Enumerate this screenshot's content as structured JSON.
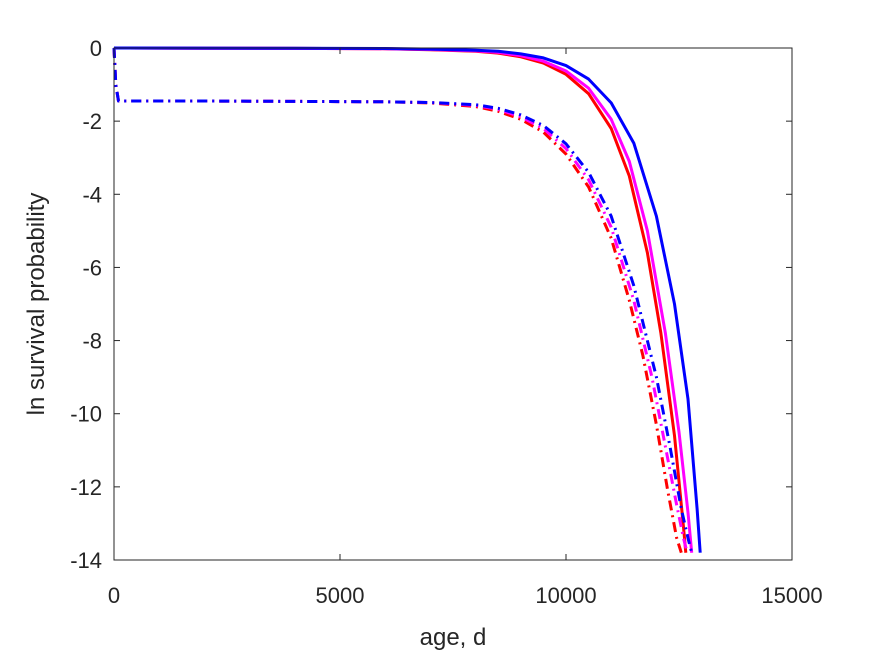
{
  "chart_data": {
    "type": "line",
    "title": "",
    "xlabel": "age, d",
    "ylabel": "ln survival probability",
    "xlim": [
      0,
      15000
    ],
    "ylim": [
      -14,
      0
    ],
    "xticks": [
      0,
      5000,
      10000,
      15000
    ],
    "yticks": [
      0,
      -2,
      -4,
      -6,
      -8,
      -10,
      -12,
      -14
    ],
    "xtick_labels": [
      "0",
      "5000",
      "10000",
      "15000"
    ],
    "ytick_labels": [
      "0",
      "-2",
      "-4",
      "-6",
      "-8",
      "-10",
      "-12",
      "-14"
    ],
    "grid": false,
    "legend": "none",
    "series": [
      {
        "color": "#ff0000",
        "style": "solid",
        "x": [
          0,
          2000,
          4000,
          6000,
          7000,
          8000,
          8500,
          9000,
          9500,
          10000,
          10500,
          11000,
          11400,
          11800,
          12100,
          12400,
          12600,
          12650
        ],
        "y": [
          0,
          -0.005,
          -0.01,
          -0.02,
          -0.05,
          -0.09,
          -0.14,
          -0.24,
          -0.41,
          -0.72,
          -1.25,
          -2.2,
          -3.5,
          -5.6,
          -7.8,
          -10.6,
          -13.1,
          -13.8
        ]
      },
      {
        "color": "#ff00ff",
        "style": "solid",
        "x": [
          0,
          2000,
          4000,
          6000,
          7000,
          8000,
          8500,
          9000,
          9500,
          10000,
          10500,
          11000,
          11400,
          11800,
          12200,
          12500,
          12700,
          12780
        ],
        "y": [
          0,
          -0.005,
          -0.01,
          -0.02,
          -0.04,
          -0.08,
          -0.12,
          -0.21,
          -0.36,
          -0.63,
          -1.1,
          -1.95,
          -3.1,
          -5.0,
          -7.8,
          -10.5,
          -12.7,
          -13.8
        ]
      },
      {
        "color": "#0000ff",
        "style": "solid",
        "x": [
          0,
          2000,
          4000,
          6000,
          7000,
          8000,
          8500,
          9000,
          9500,
          10000,
          10500,
          11000,
          11500,
          12000,
          12400,
          12700,
          12900,
          12970
        ],
        "y": [
          0,
          -0.004,
          -0.008,
          -0.015,
          -0.03,
          -0.06,
          -0.09,
          -0.16,
          -0.27,
          -0.48,
          -0.85,
          -1.5,
          -2.6,
          -4.6,
          -7.0,
          -9.6,
          -12.6,
          -13.8
        ]
      },
      {
        "color": "#ff0000",
        "style": "dashdot",
        "x": [
          0,
          40,
          100,
          2000,
          4000,
          6000,
          7000,
          8000,
          8500,
          9000,
          9500,
          10000,
          10500,
          11000,
          11400,
          11700,
          12000,
          12250,
          12450,
          12550
        ],
        "y": [
          0,
          -1.0,
          -1.45,
          -1.45,
          -1.46,
          -1.47,
          -1.5,
          -1.6,
          -1.73,
          -1.95,
          -2.3,
          -2.9,
          -3.8,
          -5.2,
          -6.9,
          -8.4,
          -10.3,
          -12.1,
          -13.4,
          -13.8
        ]
      },
      {
        "color": "#ff00ff",
        "style": "dashdot",
        "x": [
          0,
          40,
          100,
          2000,
          4000,
          6000,
          7000,
          8000,
          8500,
          9000,
          9500,
          10000,
          10500,
          11000,
          11500,
          11900,
          12200,
          12450,
          12600,
          12680
        ],
        "y": [
          0,
          -1.0,
          -1.45,
          -1.45,
          -1.46,
          -1.47,
          -1.49,
          -1.57,
          -1.68,
          -1.88,
          -2.2,
          -2.75,
          -3.6,
          -4.9,
          -6.9,
          -9.0,
          -10.9,
          -12.5,
          -13.4,
          -13.8
        ]
      },
      {
        "color": "#0000ff",
        "style": "dashdot",
        "x": [
          0,
          40,
          100,
          2000,
          4000,
          6000,
          7000,
          8000,
          8500,
          9000,
          9500,
          10000,
          10500,
          11000,
          11500,
          12000,
          12300,
          12550,
          12700,
          12780
        ],
        "y": [
          0,
          -1.0,
          -1.45,
          -1.45,
          -1.46,
          -1.47,
          -1.49,
          -1.55,
          -1.65,
          -1.83,
          -2.12,
          -2.62,
          -3.4,
          -4.6,
          -6.5,
          -9.0,
          -10.9,
          -12.6,
          -13.4,
          -13.8
        ]
      }
    ]
  }
}
